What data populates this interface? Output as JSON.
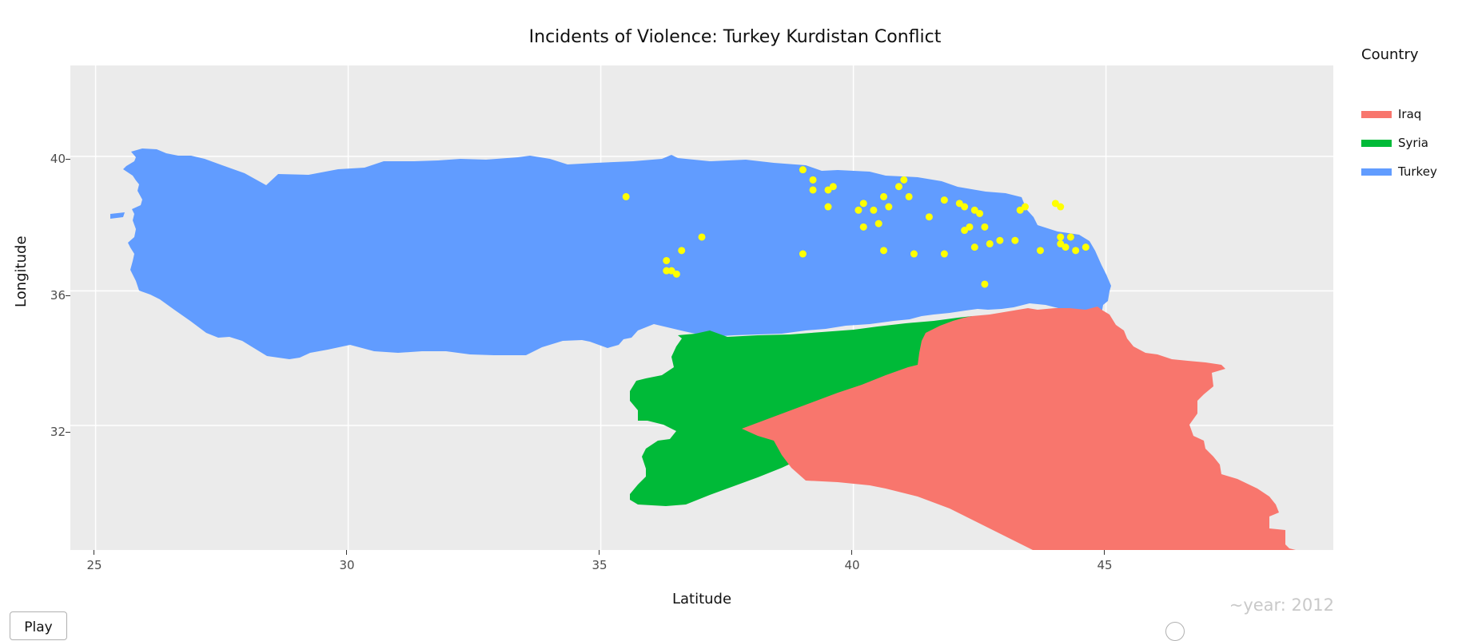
{
  "title": "Incidents of Violence: Turkey Kurdistan Conflict",
  "chart_data": {
    "type": "scatter",
    "title": "Incidents of Violence: Turkey Kurdistan Conflict",
    "xlabel": "Latitude",
    "ylabel": "Longitude",
    "xlim": [
      24.5,
      49.5
    ],
    "ylim": [
      28.3,
      42.7
    ],
    "x_ticks": [
      25,
      30,
      35,
      40,
      45
    ],
    "y_ticks": [
      32,
      36,
      40
    ],
    "legend_title": "Country",
    "legend_position": "right",
    "series": [
      {
        "name": "Iraq",
        "color": "#f8766d"
      },
      {
        "name": "Syria",
        "color": "#00ba38"
      },
      {
        "name": "Turkey",
        "color": "#619cff"
      }
    ],
    "incident_color": "#ffff00",
    "points": [
      [
        35.5,
        38.8
      ],
      [
        36.3,
        36.9
      ],
      [
        36.3,
        36.6
      ],
      [
        36.4,
        36.6
      ],
      [
        36.5,
        36.5
      ],
      [
        36.6,
        37.2
      ],
      [
        37.0,
        37.6
      ],
      [
        39.0,
        39.6
      ],
      [
        39.2,
        39.3
      ],
      [
        39.2,
        39.0
      ],
      [
        39.5,
        39.0
      ],
      [
        39.6,
        39.1
      ],
      [
        39.5,
        38.5
      ],
      [
        39.0,
        37.1
      ],
      [
        40.1,
        38.4
      ],
      [
        40.2,
        38.6
      ],
      [
        40.2,
        37.9
      ],
      [
        40.4,
        38.4
      ],
      [
        40.5,
        38.0
      ],
      [
        40.6,
        38.8
      ],
      [
        40.7,
        38.5
      ],
      [
        40.6,
        37.2
      ],
      [
        40.9,
        39.1
      ],
      [
        41.0,
        39.3
      ],
      [
        41.1,
        38.8
      ],
      [
        41.2,
        37.1
      ],
      [
        41.5,
        38.2
      ],
      [
        41.8,
        38.7
      ],
      [
        41.8,
        37.1
      ],
      [
        42.1,
        38.6
      ],
      [
        42.2,
        38.5
      ],
      [
        42.2,
        37.8
      ],
      [
        42.3,
        37.9
      ],
      [
        42.4,
        38.4
      ],
      [
        42.5,
        38.3
      ],
      [
        42.4,
        37.3
      ],
      [
        42.6,
        37.9
      ],
      [
        42.7,
        37.4
      ],
      [
        42.9,
        37.5
      ],
      [
        43.2,
        37.5
      ],
      [
        43.3,
        38.4
      ],
      [
        43.4,
        38.5
      ],
      [
        43.7,
        37.2
      ],
      [
        44.0,
        38.6
      ],
      [
        44.1,
        38.5
      ],
      [
        44.1,
        37.6
      ],
      [
        44.1,
        37.4
      ],
      [
        44.2,
        37.3
      ],
      [
        44.3,
        37.6
      ],
      [
        44.4,
        37.2
      ],
      [
        44.6,
        37.3
      ],
      [
        42.6,
        36.2
      ]
    ]
  },
  "legend": {
    "title": "Country",
    "items": [
      {
        "label": "Iraq",
        "color": "#f8766d"
      },
      {
        "label": "Syria",
        "color": "#00ba38"
      },
      {
        "label": "Turkey",
        "color": "#619cff"
      }
    ]
  },
  "axes": {
    "xlabel": "Latitude",
    "ylabel": "Longitude",
    "x_ticks": [
      "25",
      "30",
      "35",
      "40",
      "45"
    ],
    "y_ticks": [
      "32",
      "36",
      "40"
    ]
  },
  "animation": {
    "frame_label": "~year: 2012",
    "play_label": "Play"
  }
}
